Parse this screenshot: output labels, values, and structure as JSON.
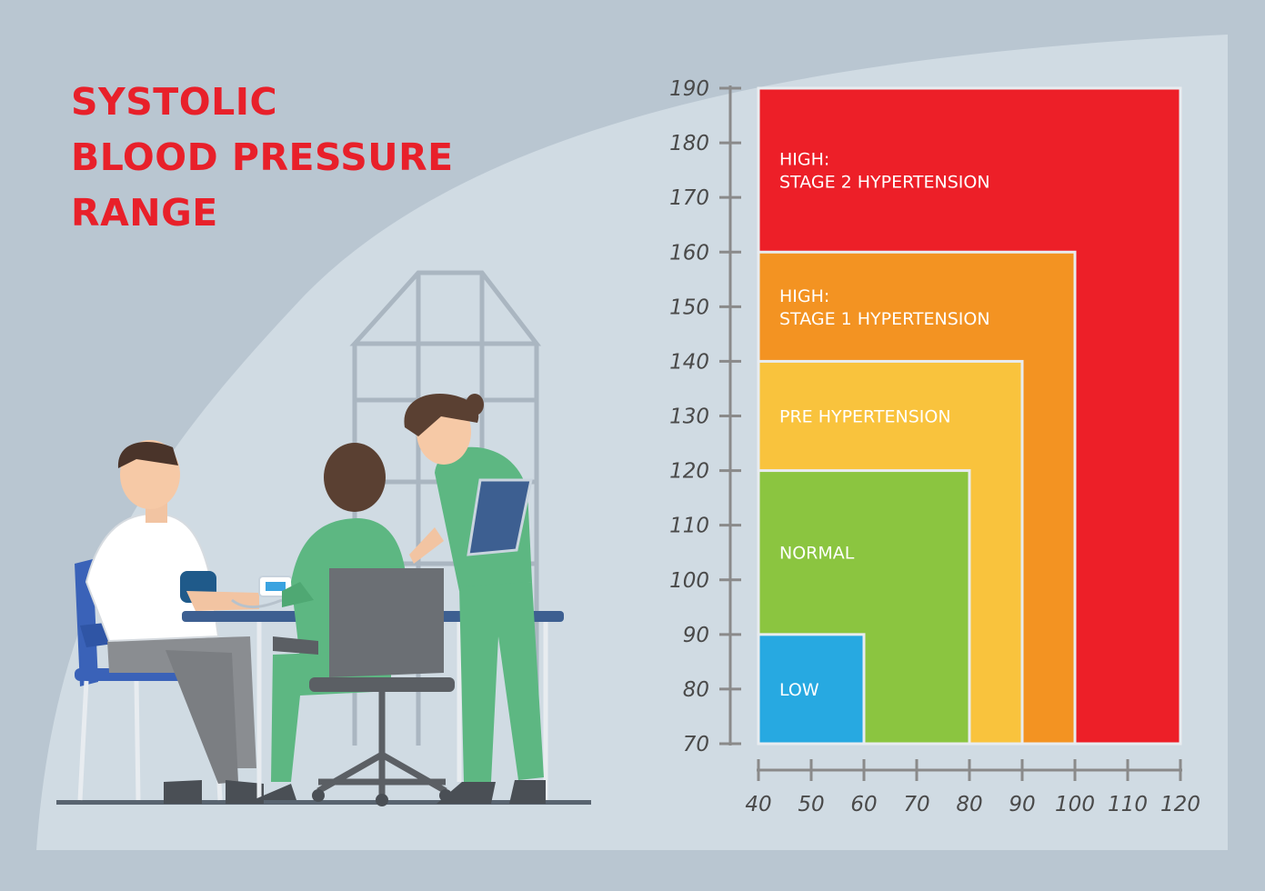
{
  "title_lines": [
    "SYSTOLIC",
    "BLOOD PRESSURE",
    "RANGE"
  ],
  "colors": {
    "background": "#b9c6d1",
    "panel": "#d0dbe3",
    "title": "#e8202a",
    "axis": "#8a8a8a",
    "tick_text": "#4a4a4a",
    "label_text": "#ffffff",
    "zone_border": "#e8ecf0"
  },
  "illustration": {
    "description_icons": [
      "patient-icon",
      "nurse-seated-icon",
      "nurse-standing-icon",
      "blood-pressure-monitor-icon",
      "office-chair-icon",
      "desk-icon",
      "window-icon",
      "clipboard-icon"
    ]
  },
  "chart_data": {
    "type": "area",
    "xlim": [
      40,
      120
    ],
    "ylim": [
      70,
      190
    ],
    "x_ticks": [
      40,
      50,
      60,
      70,
      80,
      90,
      100,
      110,
      120
    ],
    "y_ticks": [
      70,
      80,
      90,
      100,
      110,
      120,
      130,
      140,
      150,
      160,
      170,
      180,
      190
    ],
    "grid": false,
    "zones": [
      {
        "label_lines": [
          "HIGH:",
          "STAGE 2 HYPERTENSION"
        ],
        "x_max": 120,
        "y_max": 190,
        "color": "#ed1f28"
      },
      {
        "label_lines": [
          "HIGH:",
          "STAGE 1 HYPERTENSION"
        ],
        "x_max": 100,
        "y_max": 160,
        "color": "#f39322"
      },
      {
        "label_lines": [
          "PRE HYPERTENSION"
        ],
        "x_max": 90,
        "y_max": 140,
        "color": "#f9c33d"
      },
      {
        "label_lines": [
          "NORMAL"
        ],
        "x_max": 80,
        "y_max": 120,
        "color": "#8bc540"
      },
      {
        "label_lines": [
          "LOW"
        ],
        "x_max": 60,
        "y_max": 90,
        "color": "#27a9e1"
      }
    ]
  }
}
